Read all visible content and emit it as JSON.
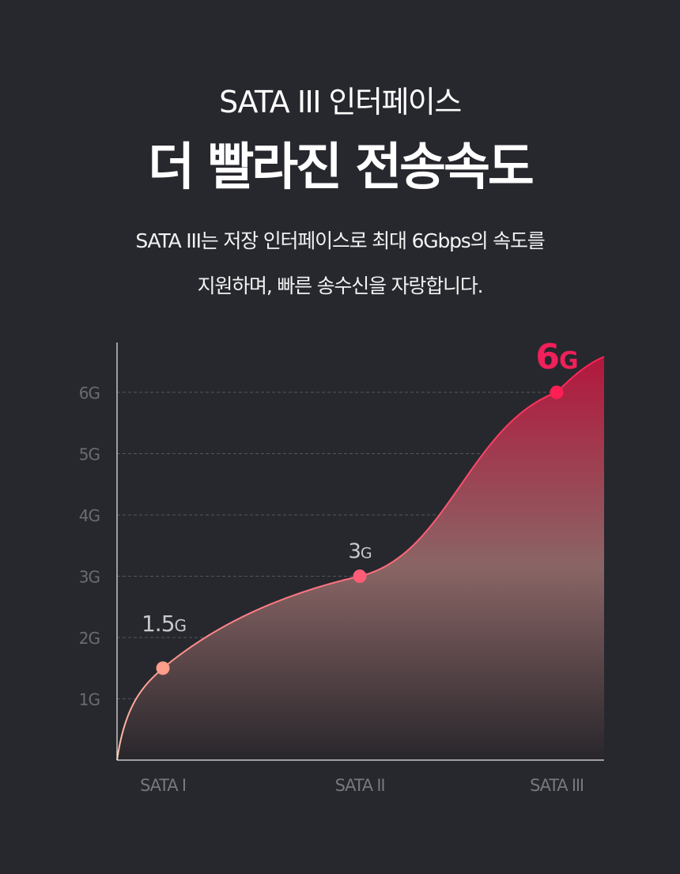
{
  "header": {
    "subtitle": "SATA III 인터페이스",
    "title": "더 빨라진 전송속도",
    "description_line1": "SATA III는 저장 인터페이스로 최대 6Gbps의 속도를",
    "description_line2": "지원하며, 빠른 송수신을 자랑합니다."
  },
  "chart_data": {
    "type": "area",
    "title": "",
    "xlabel": "",
    "ylabel": "",
    "categories": [
      "SATA I",
      "SATA II",
      "SATA III"
    ],
    "values": [
      1.5,
      3,
      6
    ],
    "data_labels": [
      {
        "number": "1.5",
        "unit": "G",
        "color": "#c9c9cc"
      },
      {
        "number": "3",
        "unit": "G",
        "color": "#c9c9cc"
      },
      {
        "number": "6",
        "unit": "G",
        "color": "#f0205a"
      }
    ],
    "point_colors": [
      "#ff9e8a",
      "#ff5d77",
      "#ff1f55"
    ],
    "y_ticks": [
      "1G",
      "2G",
      "3G",
      "4G",
      "5G",
      "6G"
    ],
    "ylim": [
      0,
      6
    ],
    "grid": true,
    "grid_style": "dashed",
    "fill_gradient": [
      "#b3173d",
      "#8a6565",
      "#28262b"
    ]
  }
}
